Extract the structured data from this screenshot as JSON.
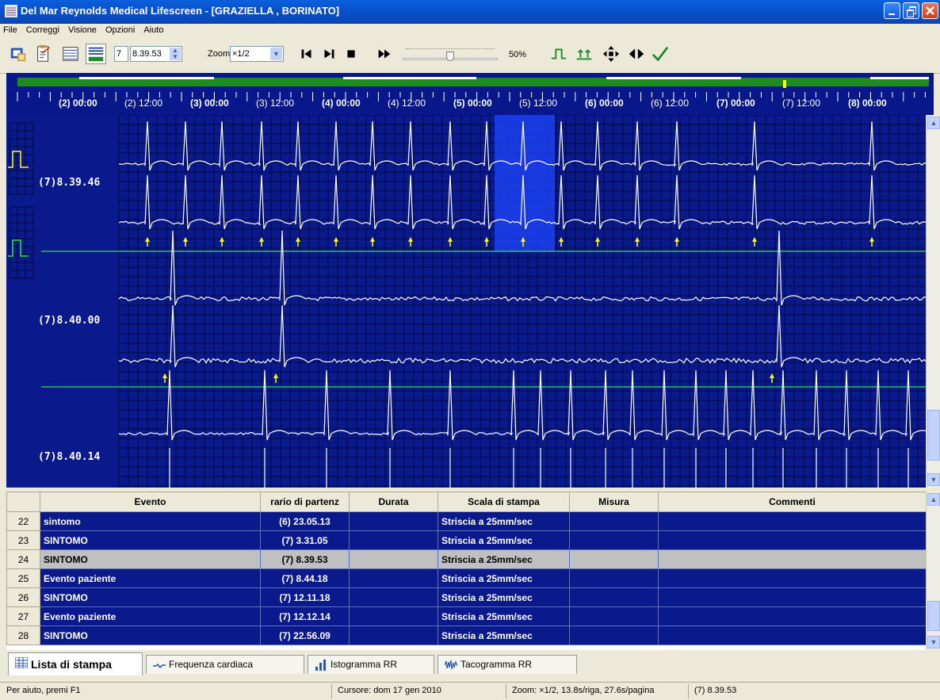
{
  "window": {
    "title": "Del Mar Reynolds Medical Lifescreen - [GRAZIELLA , BORINATO]"
  },
  "menu": [
    {
      "label": "File",
      "mnemonic": "F"
    },
    {
      "label": "Correggi",
      "mnemonic": "C"
    },
    {
      "label": "Visione",
      "mnemonic": "V"
    },
    {
      "label": "Opzioni",
      "mnemonic": "O"
    },
    {
      "label": "Aiuto",
      "mnemonic": "A"
    }
  ],
  "toolbar": {
    "day_value": "7",
    "time_value": "8.39.53",
    "zoom_label": "Zoom",
    "zoom_value": "×1/2",
    "speed_percent": "50%",
    "speed_level": 0.5
  },
  "timeline": {
    "labels": [
      "(2) 00:00",
      "(2) 12:00",
      "(3) 00:00",
      "(3) 12:00",
      "(4) 00:00",
      "(4) 12:00",
      "(5) 00:00",
      "(5) 12:00",
      "(6) 00:00",
      "(6) 12:00",
      "(7) 00:00",
      "(7) 12:00",
      "(8) 00:00"
    ]
  },
  "ecg": {
    "strip_labels": [
      "(7)8.39.46",
      "(7)8.40.00",
      "(7)8.40.14"
    ]
  },
  "table": {
    "columns": [
      "Evento",
      "rario di partenz",
      "Durata",
      "Scala di stampa",
      "Misura",
      "Commenti"
    ],
    "rows": [
      {
        "num": "22",
        "evento": "sintomo",
        "orario": "(6) 23.05.13",
        "durata": "",
        "scala": "Striscia a 25mm/sec",
        "misura": "",
        "commenti": ""
      },
      {
        "num": "23",
        "evento": "SINTOMO",
        "orario": "(7) 3.31.05",
        "durata": "",
        "scala": "Striscia a 25mm/sec",
        "misura": "",
        "commenti": ""
      },
      {
        "num": "24",
        "evento": "SINTOMO",
        "orario": "(7) 8.39.53",
        "durata": "",
        "scala": "Striscia a 25mm/sec",
        "misura": "",
        "commenti": ""
      },
      {
        "num": "25",
        "evento": "Evento paziente",
        "orario": "(7) 8.44.18",
        "durata": "",
        "scala": "Striscia a 25mm/sec",
        "misura": "",
        "commenti": ""
      },
      {
        "num": "26",
        "evento": "SINTOMO",
        "orario": "(7) 12.11.18",
        "durata": "",
        "scala": "Striscia a 25mm/sec",
        "misura": "",
        "commenti": ""
      },
      {
        "num": "27",
        "evento": "Evento paziente",
        "orario": "(7) 12.12.14",
        "durata": "",
        "scala": "Striscia a 25mm/sec",
        "misura": "",
        "commenti": ""
      },
      {
        "num": "28",
        "evento": "SINTOMO",
        "orario": "(7) 22.56.09",
        "durata": "",
        "scala": "Striscia a 25mm/sec",
        "misura": "",
        "commenti": ""
      }
    ],
    "selected_index": 2
  },
  "tabs": [
    {
      "label": "Lista di stampa",
      "active": true
    },
    {
      "label": "Frequenza cardiaca",
      "active": false
    },
    {
      "label": "Istogramma RR",
      "active": false
    },
    {
      "label": "Tacogramma RR",
      "active": false
    }
  ],
  "status": {
    "help": "Per aiuto, premi F1",
    "cursor": "Cursore: dom 17 gen 2010",
    "zoom": "Zoom: ×1/2, 13.8s/riga, 27.6s/pagina",
    "time": "(7) 8.39.53"
  },
  "colors": {
    "background": "#0a1a8c",
    "trace": "#ffffff",
    "grid": "#000000",
    "marker": "#ffff00",
    "timeline_bar": "#1e8c1e",
    "selection": "#1e46ff"
  }
}
